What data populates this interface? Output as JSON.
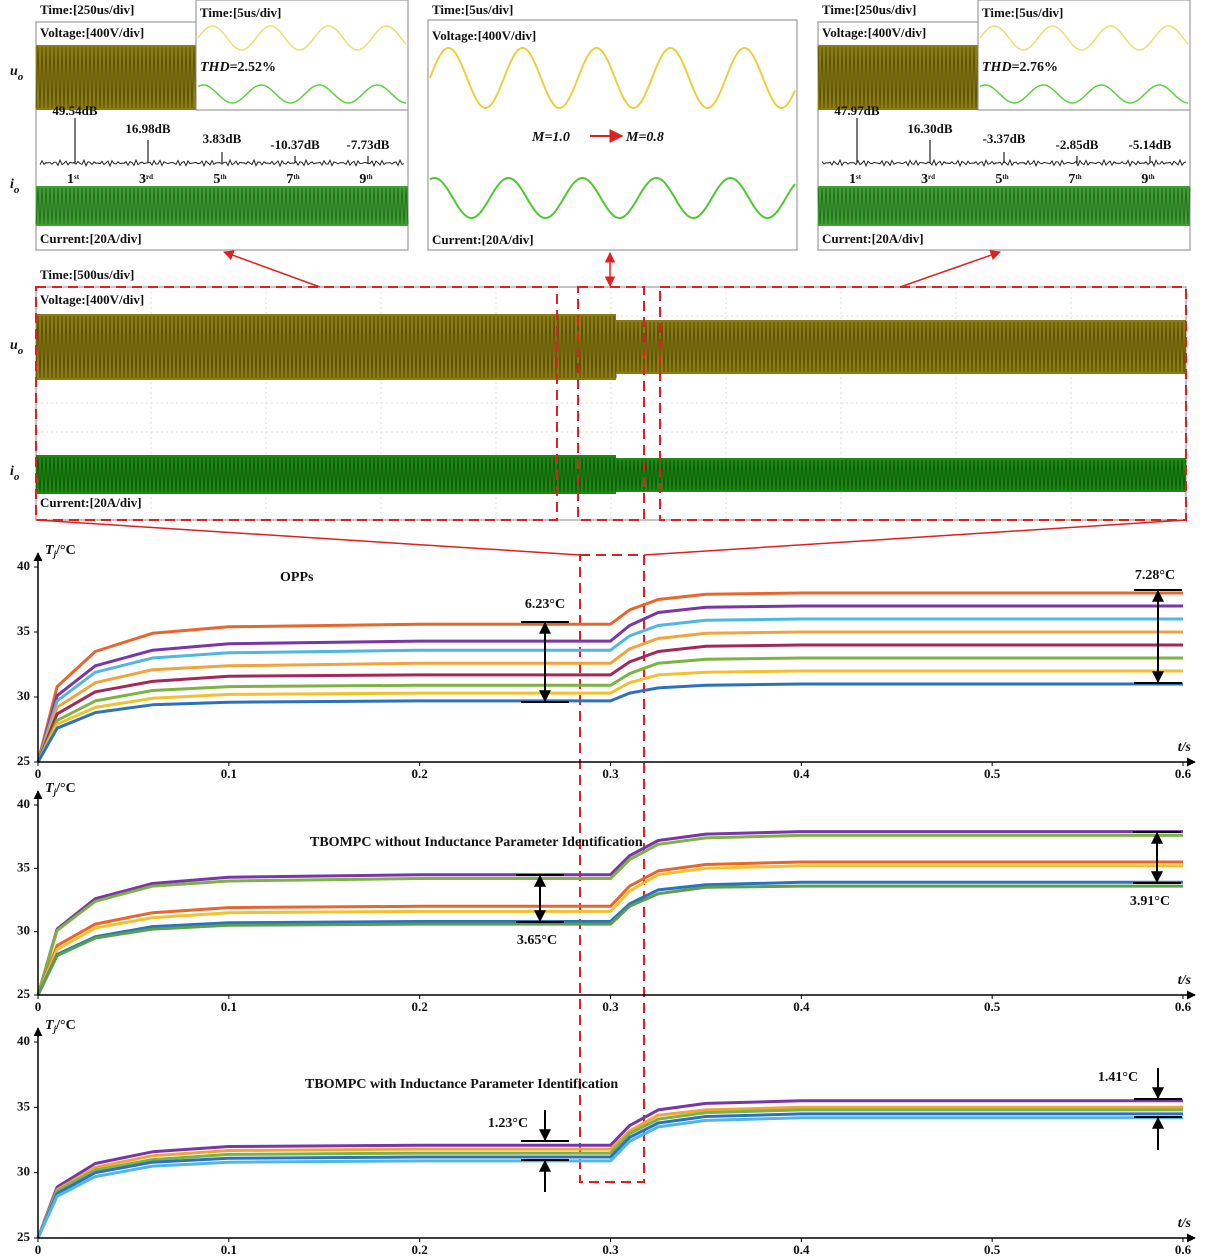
{
  "zoom_panels": [
    {
      "time": "Time:[250us/div]",
      "voltage": "Voltage:[400V/div]",
      "inset_time": "Time:[5us/div]",
      "thd_label": "THD",
      "thd_value": "=2.52%",
      "harmonics": [
        {
          "order": "1",
          "suffix": "st",
          "db": "49.54dB"
        },
        {
          "order": "3",
          "suffix": "rd",
          "db": "16.98dB"
        },
        {
          "order": "5",
          "suffix": "th",
          "db": "3.83dB"
        },
        {
          "order": "7",
          "suffix": "th",
          "db": "-10.37dB"
        },
        {
          "order": "9",
          "suffix": "th",
          "db": "-7.73dB"
        }
      ],
      "current": "Current:[20A/div]"
    },
    {
      "time": "Time:[5us/div]",
      "voltage": "Voltage:[400V/div]",
      "m_before": "M=1.0",
      "m_after": "M=0.8",
      "current": "Current:[20A/div]"
    },
    {
      "time": "Time:[250us/div]",
      "voltage": "Voltage:[400V/div]",
      "inset_time": "Time:[5us/div]",
      "thd_label": "THD",
      "thd_value": "=2.76%",
      "harmonics": [
        {
          "order": "1",
          "suffix": "st",
          "db": "47.97dB"
        },
        {
          "order": "3",
          "suffix": "rd",
          "db": "16.30dB"
        },
        {
          "order": "5",
          "suffix": "th",
          "db": "-3.37dB"
        },
        {
          "order": "7",
          "suffix": "th",
          "db": "-2.85dB"
        },
        {
          "order": "9",
          "suffix": "th",
          "db": "-5.14dB"
        }
      ],
      "current": "Current:[20A/div]"
    }
  ],
  "overview": {
    "time": "Time:[500us/div]",
    "voltage": "Voltage:[400V/div]",
    "current": "Current:[20A/div]"
  },
  "signal_labels": {
    "top": [
      {
        "main": "u",
        "sub": "o"
      },
      {
        "main": "i",
        "sub": "o"
      }
    ],
    "overview": [
      {
        "main": "u",
        "sub": "o"
      },
      {
        "main": "i",
        "sub": "o"
      }
    ]
  },
  "chart_data": [
    {
      "type": "line",
      "title": "OPPs",
      "x_label": "t/s",
      "y_label": {
        "main": "T",
        "sub": "j",
        "unit": "/°C"
      },
      "x": [
        0,
        0.01,
        0.03,
        0.06,
        0.1,
        0.2,
        0.29,
        0.3,
        0.31,
        0.325,
        0.35,
        0.4,
        0.5,
        0.6
      ],
      "series": [
        {
          "color": "#e8662c",
          "values": [
            25,
            30.8,
            33.5,
            34.9,
            35.4,
            35.6,
            35.6,
            35.6,
            36.7,
            37.5,
            37.9,
            38.0,
            38.0,
            38.0
          ]
        },
        {
          "color": "#7a35a8",
          "values": [
            25,
            30.1,
            32.4,
            33.6,
            34.1,
            34.3,
            34.3,
            34.3,
            35.5,
            36.5,
            36.9,
            37.0,
            37.0,
            37.0
          ]
        },
        {
          "color": "#4fb6e8",
          "values": [
            25,
            29.7,
            31.9,
            33.0,
            33.4,
            33.6,
            33.6,
            33.6,
            34.7,
            35.5,
            35.9,
            36.0,
            36.0,
            36.0
          ]
        },
        {
          "color": "#f2a43a",
          "values": [
            25,
            29.2,
            31.1,
            32.1,
            32.4,
            32.6,
            32.6,
            32.6,
            33.7,
            34.5,
            34.9,
            35.0,
            35.0,
            35.0
          ]
        },
        {
          "color": "#a3285a",
          "values": [
            25,
            28.7,
            30.4,
            31.2,
            31.6,
            31.7,
            31.7,
            31.7,
            32.7,
            33.5,
            33.9,
            34.0,
            34.0,
            34.0
          ]
        },
        {
          "color": "#7cb342",
          "values": [
            25,
            28.2,
            29.7,
            30.5,
            30.8,
            30.9,
            30.9,
            30.9,
            31.8,
            32.6,
            32.9,
            33.0,
            33.0,
            33.0
          ]
        },
        {
          "color": "#f2c12e",
          "values": [
            25,
            27.9,
            29.2,
            29.9,
            30.2,
            30.3,
            30.3,
            30.3,
            31.1,
            31.7,
            31.9,
            32.0,
            32.0,
            32.0
          ]
        },
        {
          "color": "#2a72c0",
          "values": [
            25,
            27.6,
            28.8,
            29.4,
            29.6,
            29.7,
            29.7,
            29.7,
            30.3,
            30.7,
            30.9,
            31.0,
            31.0,
            31.0
          ]
        }
      ],
      "xlim": [
        0,
        0.6
      ],
      "ylim": [
        25,
        40
      ],
      "xticks": [
        0,
        0.1,
        0.2,
        0.3,
        0.4,
        0.5,
        0.6
      ],
      "yticks": [
        25,
        30,
        35,
        40
      ],
      "annotations": [
        "6.23°C",
        "7.28°C"
      ]
    },
    {
      "type": "line",
      "title": "TBOMPC without Inductance Parameter  Identification",
      "x_label": "t/s",
      "y_label": {
        "main": "T",
        "sub": "j",
        "unit": "/°C"
      },
      "x": [
        0,
        0.01,
        0.03,
        0.06,
        0.1,
        0.2,
        0.29,
        0.3,
        0.31,
        0.325,
        0.35,
        0.4,
        0.5,
        0.6
      ],
      "series": [
        {
          "color": "#7a35a8",
          "values": [
            25,
            30.2,
            32.6,
            33.8,
            34.3,
            34.5,
            34.5,
            34.5,
            36.0,
            37.2,
            37.7,
            37.9,
            37.9,
            37.9
          ]
        },
        {
          "color": "#7cb342",
          "values": [
            25,
            30.1,
            32.4,
            33.6,
            34.0,
            34.2,
            34.2,
            34.2,
            35.7,
            36.9,
            37.4,
            37.6,
            37.6,
            37.6
          ]
        },
        {
          "color": "#e8662c",
          "values": [
            25,
            28.9,
            30.6,
            31.5,
            31.9,
            32.0,
            32.0,
            32.0,
            33.6,
            34.8,
            35.3,
            35.5,
            35.5,
            35.5
          ]
        },
        {
          "color": "#f2c12e",
          "values": [
            25,
            28.6,
            30.3,
            31.1,
            31.5,
            31.6,
            31.6,
            31.6,
            33.2,
            34.5,
            35.0,
            35.2,
            35.2,
            35.2
          ]
        },
        {
          "color": "#2a72c0",
          "values": [
            25,
            28.2,
            29.6,
            30.4,
            30.7,
            30.8,
            30.8,
            30.8,
            32.2,
            33.3,
            33.7,
            33.9,
            33.9,
            33.9
          ]
        },
        {
          "color": "#5aa04a",
          "values": [
            25,
            28.1,
            29.5,
            30.2,
            30.5,
            30.6,
            30.6,
            30.6,
            32.0,
            33.0,
            33.5,
            33.6,
            33.6,
            33.6
          ]
        }
      ],
      "xlim": [
        0,
        0.6
      ],
      "ylim": [
        25,
        40
      ],
      "xticks": [
        0,
        0.1,
        0.2,
        0.3,
        0.4,
        0.5,
        0.6
      ],
      "yticks": [
        25,
        30,
        35,
        40
      ],
      "annotations": [
        "3.65°C",
        "3.91°C"
      ]
    },
    {
      "type": "line",
      "title": "TBOMPC with Inductance Parameter  Identification",
      "x_label": "t/s",
      "y_label": {
        "main": "T",
        "sub": "j",
        "unit": "/°C"
      },
      "x": [
        0,
        0.01,
        0.03,
        0.06,
        0.1,
        0.2,
        0.29,
        0.3,
        0.31,
        0.325,
        0.35,
        0.4,
        0.5,
        0.6
      ],
      "series": [
        {
          "color": "#7a35a8",
          "values": [
            25,
            28.9,
            30.7,
            31.6,
            32.0,
            32.1,
            32.1,
            32.1,
            33.6,
            34.8,
            35.3,
            35.5,
            35.5,
            35.5
          ]
        },
        {
          "color": "#f2a43a",
          "values": [
            25,
            28.7,
            30.4,
            31.3,
            31.7,
            31.8,
            31.8,
            31.8,
            33.2,
            34.4,
            34.8,
            35.0,
            35.0,
            35.0
          ]
        },
        {
          "color": "#7cb342",
          "values": [
            25,
            28.6,
            30.2,
            31.0,
            31.4,
            31.5,
            31.5,
            31.5,
            33.0,
            34.1,
            34.6,
            34.8,
            34.8,
            34.8
          ]
        },
        {
          "color": "#2a72c0",
          "values": [
            25,
            28.4,
            30.0,
            30.8,
            31.1,
            31.2,
            31.2,
            31.2,
            32.7,
            33.8,
            34.3,
            34.5,
            34.5,
            34.5
          ]
        },
        {
          "color": "#4fb6e8",
          "values": [
            25,
            28.2,
            29.7,
            30.5,
            30.8,
            30.9,
            30.9,
            30.9,
            32.4,
            33.5,
            34.0,
            34.2,
            34.2,
            34.2
          ]
        }
      ],
      "xlim": [
        0,
        0.6
      ],
      "ylim": [
        25,
        40
      ],
      "xticks": [
        0,
        0.1,
        0.2,
        0.3,
        0.4,
        0.5,
        0.6
      ],
      "yticks": [
        25,
        30,
        35,
        40
      ],
      "annotations": [
        "1.23°C",
        "1.41°C"
      ]
    }
  ]
}
